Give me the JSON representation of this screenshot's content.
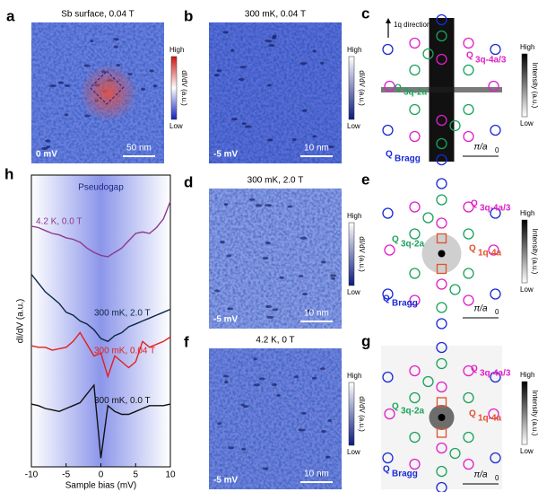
{
  "panels": {
    "a": {
      "letter": "a",
      "title": "Sb surface, 0.04 T",
      "high": "High",
      "low": "Low",
      "colorbar_label": "dI/dV (a.u.)",
      "scale": "50 nm",
      "bias": "0 mV"
    },
    "b": {
      "letter": "b",
      "title": "300 mK, 0.04 T",
      "high": "High",
      "low": "Low",
      "colorbar_label": "dI/dV (a.u.)",
      "scale": "10 nm",
      "bias": "-5 mV"
    },
    "c": {
      "letter": "c",
      "direction": "1q direction",
      "high": "High",
      "low": "Low",
      "colorbar_label": "Intensity (a.u.)",
      "scale_main": "π/a",
      "scale_sub": "0",
      "q_labels": [
        {
          "q": "Q",
          "sub": "3q-4a/3"
        },
        {
          "q": "Q",
          "sub": "3q-2a"
        },
        {
          "q": "Q",
          "sub": "Bragg"
        }
      ]
    },
    "d": {
      "letter": "d",
      "title": "300 mK, 2.0 T",
      "high": "High",
      "low": "Low",
      "colorbar_label": "dI/dV (a.u.)",
      "scale": "10 nm",
      "bias": "-5 mV"
    },
    "e": {
      "letter": "e",
      "high": "High",
      "low": "Low",
      "colorbar_label": "Intensity (a.u.)",
      "scale_main": "π/a",
      "scale_sub": "0",
      "q_labels": [
        {
          "q": "Q",
          "sub": "3q-4a/3"
        },
        {
          "q": "Q",
          "sub": "3q-2a"
        },
        {
          "q": "Q",
          "sub": "1q-4a"
        },
        {
          "q": "Q",
          "sub": "Bragg"
        }
      ]
    },
    "f": {
      "letter": "f",
      "title": "4.2 K, 0 T",
      "high": "High",
      "low": "Low",
      "colorbar_label": "dI/dV (a.u.)",
      "scale": "10 nm",
      "bias": "-5 mV"
    },
    "g": {
      "letter": "g",
      "high": "High",
      "low": "Low",
      "colorbar_label": "Intensity (a.u.)",
      "scale_main": "π/a",
      "scale_sub": "0",
      "q_labels": [
        {
          "q": "Q",
          "sub": "3q-4a/3"
        },
        {
          "q": "Q",
          "sub": "3q-2a"
        },
        {
          "q": "Q",
          "sub": "1q-4a"
        },
        {
          "q": "Q",
          "sub": "Bragg"
        }
      ]
    }
  },
  "chart_data": {
    "type": "line",
    "letter": "h",
    "annotation": "Pseudogap",
    "x_label": "Sample bias (mV)",
    "y_label": "dI/dV (a.u.)",
    "x": [
      -10,
      -9,
      -8,
      -7,
      -6,
      -5,
      -4,
      -3,
      -2,
      -1,
      0,
      1,
      2,
      3,
      4,
      5,
      6,
      7,
      8,
      9,
      10
    ],
    "xlim": [
      -10,
      10
    ],
    "xticks": [
      -10,
      -5,
      0,
      5,
      10
    ],
    "ylim": [
      0,
      10
    ],
    "series": [
      {
        "name": "4.2 K, 0.0 T",
        "color": "#8b3a8f",
        "values": [
          8.25,
          8.2,
          8.1,
          8.0,
          7.95,
          7.85,
          7.8,
          7.7,
          7.5,
          7.35,
          7.25,
          7.2,
          7.35,
          7.5,
          7.75,
          8.0,
          8.05,
          8.0,
          8.2,
          8.5,
          9.1
        ]
      },
      {
        "name": "300 mK, 2.0 T",
        "color": "#0b2545",
        "values": [
          6.6,
          6.3,
          6.0,
          5.8,
          5.6,
          5.3,
          5.2,
          5.0,
          4.9,
          4.7,
          4.4,
          4.3,
          4.5,
          4.6,
          4.8,
          4.9,
          5.0,
          5.1,
          5.2,
          5.3,
          5.4
        ]
      },
      {
        "name": "300 mK, 0.04 T",
        "color": "#e21f1f",
        "values": [
          4.15,
          4.1,
          4.1,
          4.0,
          4.05,
          4.1,
          4.3,
          4.6,
          4.2,
          3.8,
          3.9,
          3.1,
          3.8,
          3.6,
          3.4,
          3.6,
          4.3,
          4.1,
          4.2,
          4.3,
          4.45
        ]
      },
      {
        "name": "300 mK, 0.0 T",
        "color": "#111111",
        "values": [
          2.15,
          2.1,
          2.0,
          1.95,
          1.9,
          2.0,
          2.1,
          2.2,
          2.5,
          2.8,
          0.3,
          2.1,
          1.9,
          1.8,
          1.8,
          1.9,
          2.0,
          2.1,
          2.1,
          2.1,
          2.15
        ]
      }
    ]
  }
}
